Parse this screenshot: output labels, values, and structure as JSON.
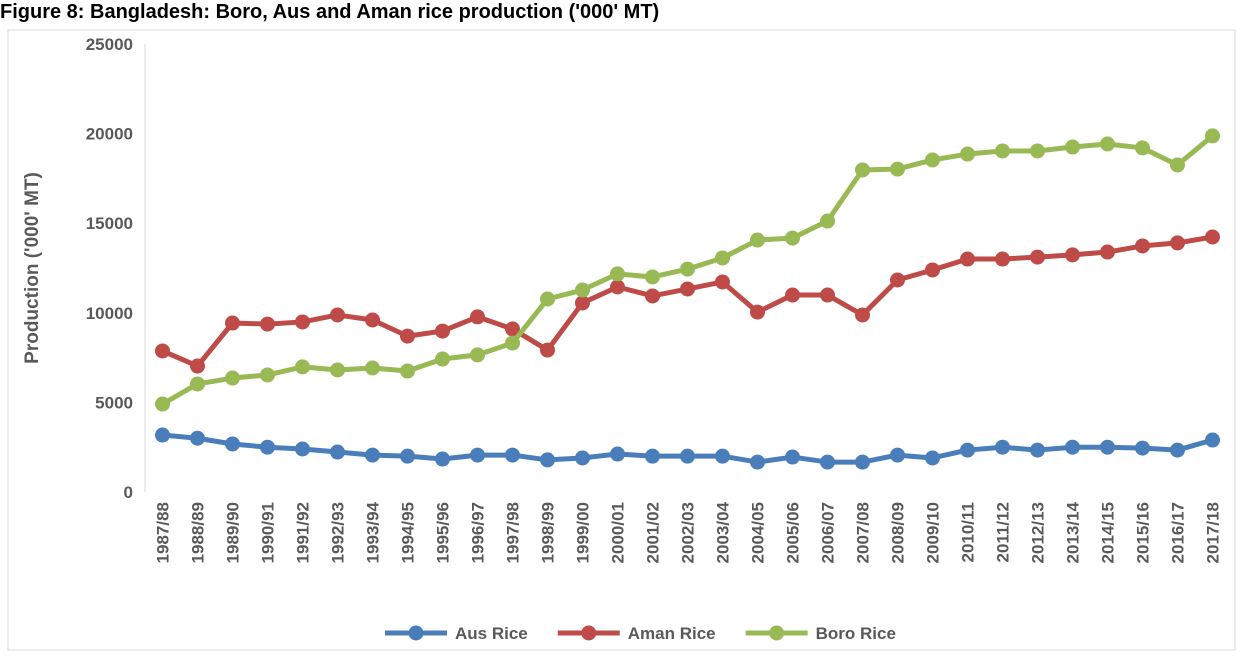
{
  "chart_data": {
    "type": "line",
    "title": "Figure 8: Bangladesh: Boro, Aus and Aman rice production ('000' MT)",
    "y_label": "Production ('000' MT)",
    "categories": [
      "1987/88",
      "1988/89",
      "1989/90",
      "1990/91",
      "1991/92",
      "1992/93",
      "1993/94",
      "1994/95",
      "1995/96",
      "1996/97",
      "1997/98",
      "1998/99",
      "1999/00",
      "2000/01",
      "2001/02",
      "2002/03",
      "2003/04",
      "2004/05",
      "2005/06",
      "2006/07",
      "2007/08",
      "2008/09",
      "2009/10",
      "2010/11",
      "2011/12",
      "2012/13",
      "2013/14",
      "2014/15",
      "2015/16",
      "2016/17",
      "2017/18"
    ],
    "series": [
      {
        "name": "Aus Rice",
        "color": "#4a7ebb",
        "values": [
          3180,
          3000,
          2680,
          2500,
          2400,
          2230,
          2060,
          2000,
          1840,
          2060,
          2060,
          1790,
          1900,
          2120,
          2000,
          2000,
          2000,
          1670,
          1950,
          1670,
          1670,
          2060,
          1900,
          2340,
          2500,
          2340,
          2500,
          2500,
          2450,
          2340,
          2900
        ]
      },
      {
        "name": "Aman Rice",
        "color": "#be4b48",
        "values": [
          7870,
          7030,
          9430,
          9370,
          9490,
          9880,
          9600,
          8700,
          8980,
          9770,
          9100,
          7920,
          10550,
          11440,
          10940,
          11330,
          11720,
          10040,
          10990,
          10990,
          9880,
          11830,
          12390,
          13000,
          13000,
          13110,
          13230,
          13390,
          13730,
          13900,
          14230
        ]
      },
      {
        "name": "Boro Rice",
        "color": "#98b954",
        "values": [
          4910,
          6030,
          6360,
          6530,
          6980,
          6810,
          6920,
          6750,
          7420,
          7650,
          8310,
          10770,
          11270,
          12170,
          12000,
          12440,
          13060,
          14060,
          14170,
          15120,
          17970,
          18020,
          18530,
          18860,
          19030,
          19030,
          19250,
          19420,
          19200,
          18250,
          19870
        ]
      }
    ],
    "ylim": [
      0,
      25000
    ],
    "yticks": [
      0,
      5000,
      10000,
      15000,
      20000,
      25000
    ],
    "grid": false,
    "legend": "bottom"
  }
}
